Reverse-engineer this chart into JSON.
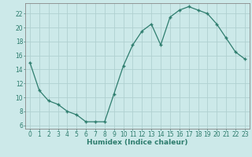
{
  "title": "",
  "xlabel": "Humidex (Indice chaleur)",
  "ylabel": "",
  "x": [
    0,
    1,
    2,
    3,
    4,
    5,
    6,
    7,
    8,
    9,
    10,
    11,
    12,
    13,
    14,
    15,
    16,
    17,
    18,
    19,
    20,
    21,
    22,
    23
  ],
  "y": [
    15,
    11,
    9.5,
    9,
    8,
    7.5,
    6.5,
    6.5,
    6.5,
    10.5,
    14.5,
    17.5,
    19.5,
    20.5,
    17.5,
    21.5,
    22.5,
    23,
    22.5,
    22,
    20.5,
    18.5,
    16.5,
    15.5
  ],
  "line_color": "#2e7d6e",
  "marker": "+",
  "marker_size": 3.5,
  "marker_linewidth": 1.0,
  "line_width": 0.9,
  "bg_color": "#cce9e9",
  "grid_color": "#b0d0d0",
  "tick_color": "#2e7d6e",
  "label_color": "#2e7d6e",
  "spine_color": "#888888",
  "xlim": [
    -0.5,
    23.5
  ],
  "ylim": [
    5.5,
    23.5
  ],
  "yticks": [
    6,
    8,
    10,
    12,
    14,
    16,
    18,
    20,
    22
  ],
  "xticks": [
    0,
    1,
    2,
    3,
    4,
    5,
    6,
    7,
    8,
    9,
    10,
    11,
    12,
    13,
    14,
    15,
    16,
    17,
    18,
    19,
    20,
    21,
    22,
    23
  ],
  "tick_fontsize": 5.5,
  "xlabel_fontsize": 6.5
}
